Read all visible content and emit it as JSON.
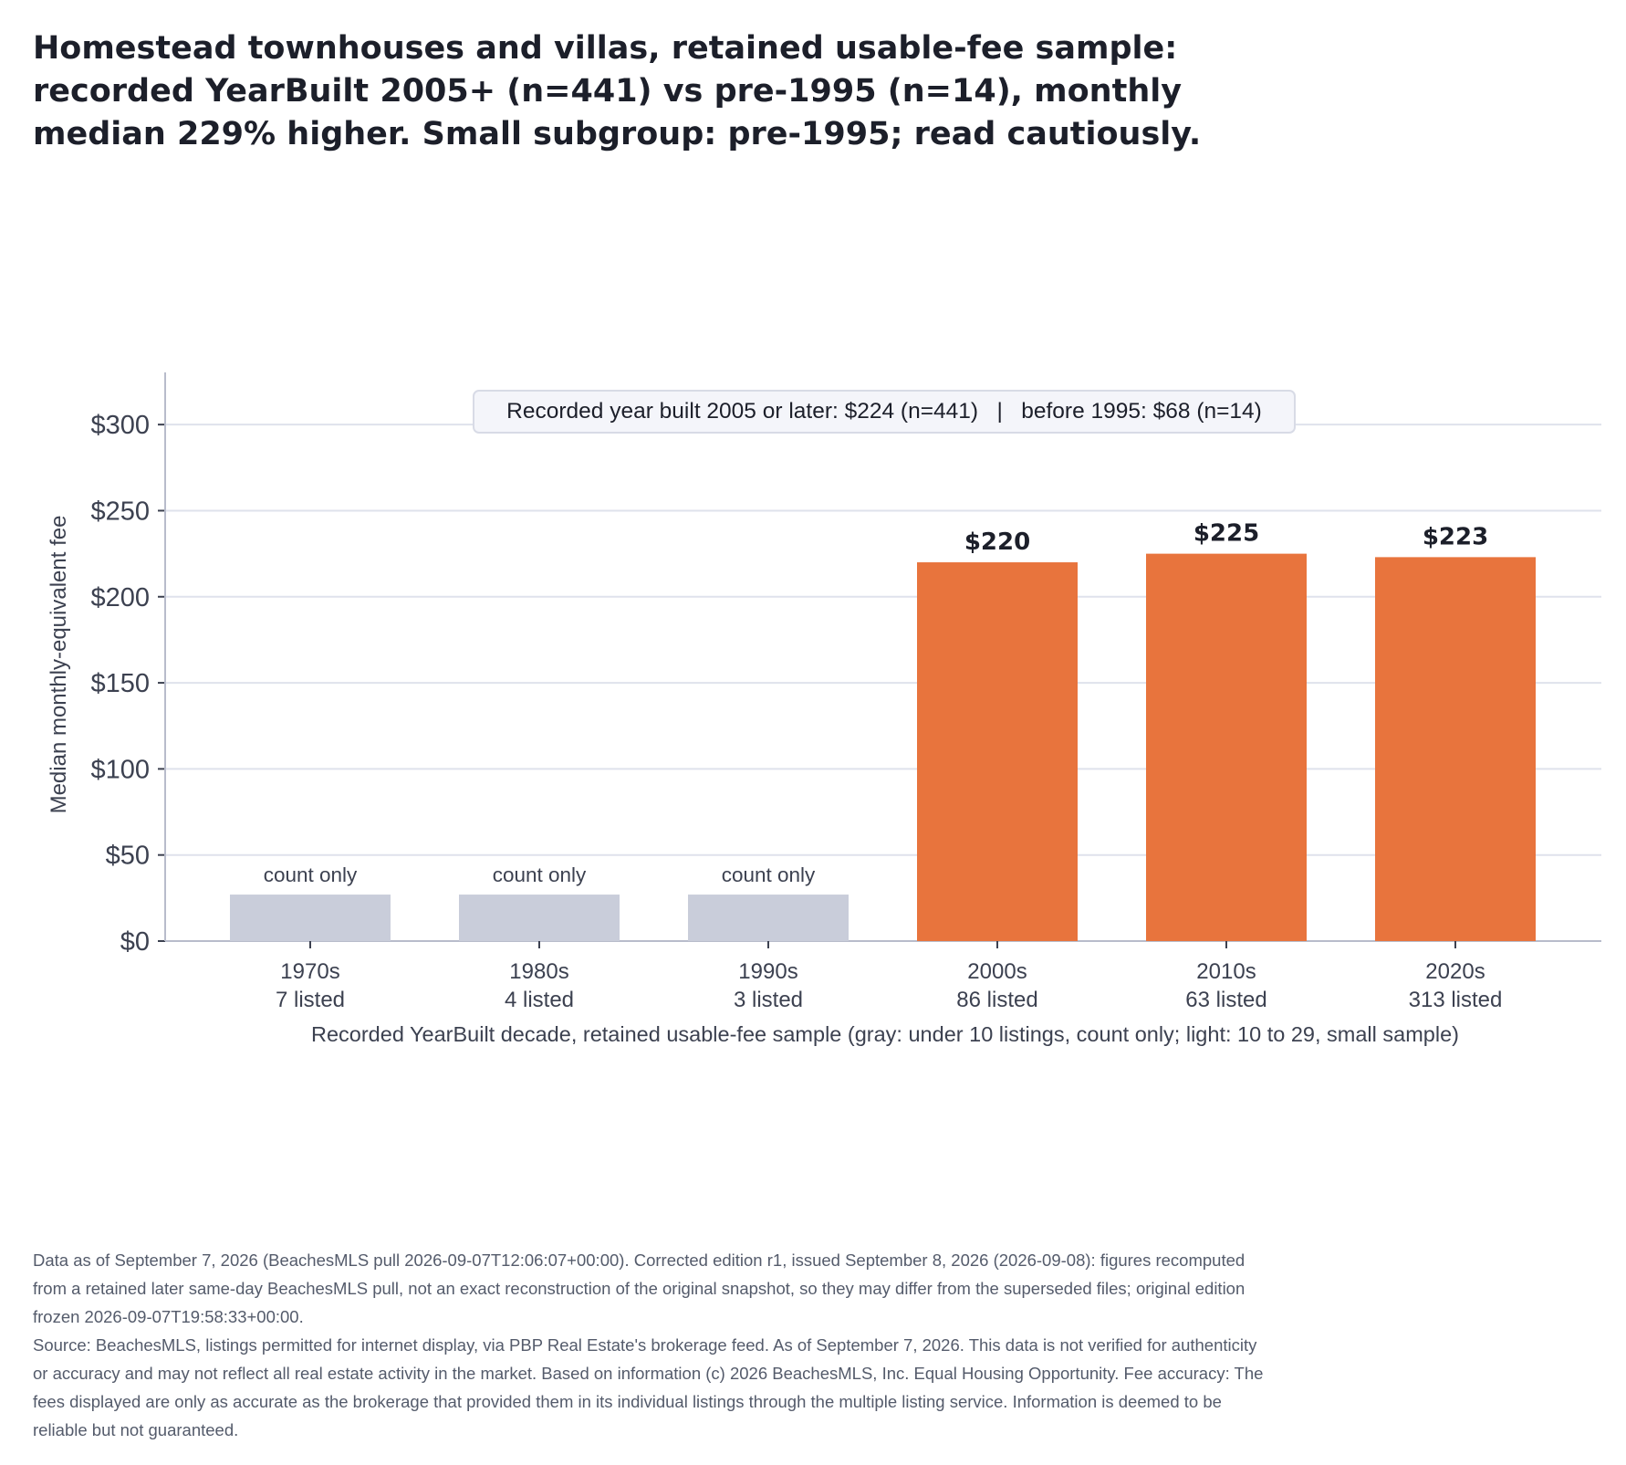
{
  "chart_data": {
    "type": "bar",
    "title": "Homestead townhouses and villas, retained usable-fee sample: recorded YearBuilt 2005+ (n=441) vs pre-1995 (n=14), monthly median 229% higher. Small subgroup: pre-1995; read cautiously.",
    "ylabel": "Median monthly-equivalent fee",
    "xlabel": "Recorded YearBuilt decade, retained usable-fee sample (gray: under 10 listings, count only; light: 10 to 29, small sample)",
    "ylim": [
      0,
      325
    ],
    "yticks": [
      0,
      50,
      100,
      150,
      200,
      250,
      300
    ],
    "ytick_labels": [
      "$0",
      "$50",
      "$100",
      "$150",
      "$200",
      "$250",
      "$300"
    ],
    "grid": true,
    "legend_box": "Recorded year built 2005 or later: $224 (n=441)   |   before 1995: $68 (n=14)",
    "categories": [
      "1970s",
      "1980s",
      "1990s",
      "2000s",
      "2010s",
      "2020s"
    ],
    "counts": [
      "7 listed",
      "4 listed",
      "3 listed",
      "86 listed",
      "63 listed",
      "313 listed"
    ],
    "values": [
      null,
      null,
      null,
      220,
      225,
      223
    ],
    "bar_labels": [
      "count only",
      "count only",
      "count only",
      "$220",
      "$225",
      "$223"
    ],
    "count_only_placeholder_value": 27,
    "colors": {
      "count_only": "#c9cdda",
      "full": "#e8743d",
      "grid": "#dfe2ec",
      "axis": "#b8bccb"
    }
  },
  "notes": {
    "data_note": "Data as of September 7, 2026 (BeachesMLS pull 2026-09-07T12:06:07+00:00). Corrected edition r1, issued September 8, 2026 (2026-09-08): figures recomputed from a retained later same-day BeachesMLS pull, not an exact reconstruction of the original snapshot, so they may differ from the superseded files; original edition frozen 2026-09-07T19:58:33+00:00.",
    "source_note": "Source: BeachesMLS, listings permitted for internet display, via PBP Real Estate's brokerage feed. As of September 7, 2026. This data is not verified for authenticity or accuracy and may not reflect all real estate activity in the market. Based on information (c) 2026 BeachesMLS, Inc. Equal Housing Opportunity. Fee accuracy: The fees displayed are only as accurate as the brokerage that provided them in its individual listings through the multiple listing service. Information is deemed to be reliable but not guaranteed."
  }
}
